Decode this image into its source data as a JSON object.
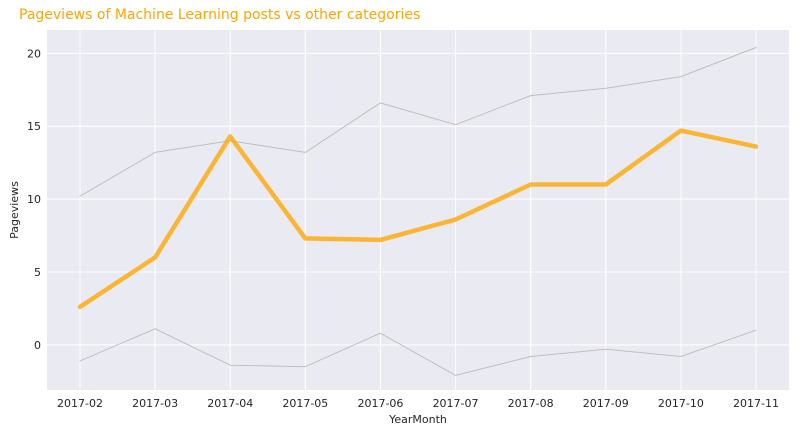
{
  "chart_data": {
    "type": "line",
    "title": "Pageviews of Machine Learning posts vs other categories",
    "xlabel": "YearMonth",
    "ylabel": "Pageviews",
    "categories": [
      "2017-02",
      "2017-03",
      "2017-04",
      "2017-05",
      "2017-06",
      "2017-07",
      "2017-08",
      "2017-09",
      "2017-10",
      "2017-11"
    ],
    "ylim": [
      -3.1,
      21.6
    ],
    "yticks": [
      0,
      5,
      10,
      15,
      20
    ],
    "grid": true,
    "series": [
      {
        "color": "#bfbfbf",
        "highlight": false,
        "values": [
          10.2,
          13.2,
          14.0,
          13.2,
          16.6,
          15.1,
          17.1,
          17.6,
          18.4,
          20.4
        ]
      },
      {
        "color": "#bfbfbf",
        "highlight": false,
        "values": [
          -1.1,
          1.1,
          -1.4,
          -1.5,
          0.8,
          -2.1,
          -0.8,
          -0.3,
          -0.8,
          1.0
        ]
      },
      {
        "color": "#ffa500",
        "highlight": true,
        "values": [
          2.6,
          6.0,
          14.3,
          7.3,
          7.2,
          8.6,
          11.0,
          11.0,
          14.7,
          13.6
        ]
      }
    ]
  },
  "colors": {
    "plot_background": "#eaeaf2",
    "grid": "#ffffff",
    "title": "#ffa500"
  }
}
